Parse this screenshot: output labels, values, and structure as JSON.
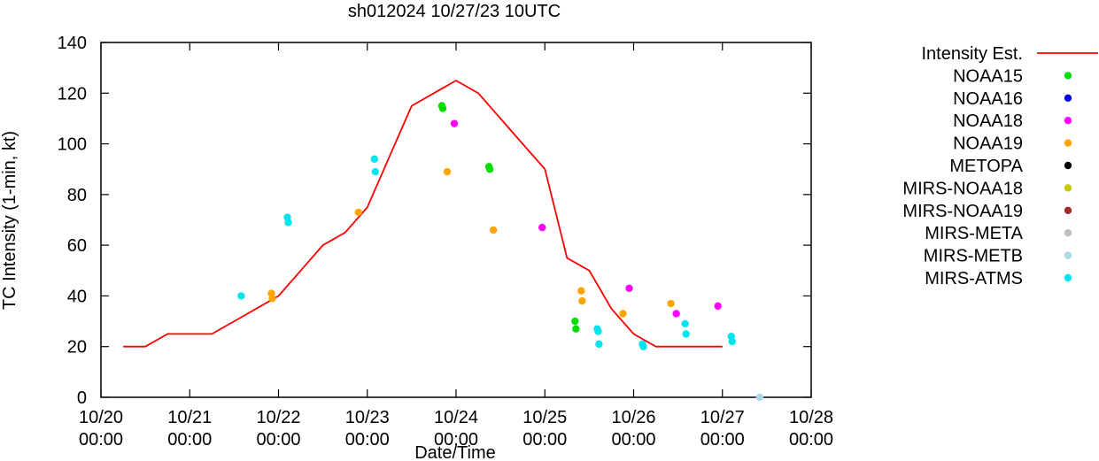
{
  "chart_data": {
    "type": "scatter",
    "title": "sh012024 10/27/23 10UTC",
    "xlabel": "Date/Time",
    "ylabel": "TC Intensity (1-min, kt)",
    "ylim": [
      0,
      140
    ],
    "yticks": [
      0,
      20,
      40,
      60,
      80,
      100,
      120,
      140
    ],
    "xlim": [
      0,
      8
    ],
    "xticks": [
      {
        "value": 0,
        "date": "10/20",
        "time": "00:00"
      },
      {
        "value": 1,
        "date": "10/21",
        "time": "00:00"
      },
      {
        "value": 2,
        "date": "10/22",
        "time": "00:00"
      },
      {
        "value": 3,
        "date": "10/23",
        "time": "00:00"
      },
      {
        "value": 4,
        "date": "10/24",
        "time": "00:00"
      },
      {
        "value": 5,
        "date": "10/25",
        "time": "00:00"
      },
      {
        "value": 6,
        "date": "10/26",
        "time": "00:00"
      },
      {
        "value": 7,
        "date": "10/27",
        "time": "00:00"
      },
      {
        "value": 8,
        "date": "10/28",
        "time": "00:00"
      }
    ],
    "x_units": "days since 10/20 00:00",
    "series": [
      {
        "name": "Intensity Est.",
        "kind": "line",
        "color": "#ff0000",
        "x": [
          0.25,
          0.5,
          0.75,
          1.0,
          1.25,
          1.5,
          1.75,
          2.0,
          2.25,
          2.5,
          2.75,
          3.0,
          3.25,
          3.5,
          3.75,
          4.0,
          4.25,
          4.5,
          4.75,
          5.0,
          5.25,
          5.5,
          5.75,
          6.0,
          6.25,
          6.5,
          6.75,
          7.0
        ],
        "y": [
          20,
          20,
          25,
          25,
          25,
          30,
          35,
          40,
          50,
          60,
          65,
          75,
          95,
          115,
          120,
          125,
          120,
          110,
          100,
          90,
          55,
          50,
          35,
          25,
          20,
          20,
          20,
          20
        ]
      },
      {
        "name": "NOAA15",
        "kind": "points",
        "color": "#00dd00",
        "x": [
          3.84,
          3.85,
          4.37,
          4.38,
          5.34,
          5.35
        ],
        "y": [
          115,
          114,
          91,
          90,
          30,
          27
        ]
      },
      {
        "name": "NOAA16",
        "kind": "points",
        "color": "#0000ee",
        "x": [],
        "y": []
      },
      {
        "name": "NOAA18",
        "kind": "points",
        "color": "#ff00ff",
        "x": [
          3.98,
          4.97,
          5.95,
          6.48,
          6.95
        ],
        "y": [
          108,
          67,
          43,
          33,
          36
        ]
      },
      {
        "name": "NOAA19",
        "kind": "points",
        "color": "#ffa500",
        "x": [
          1.92,
          1.93,
          2.9,
          3.9,
          4.42,
          5.41,
          5.42,
          5.88,
          6.42
        ],
        "y": [
          41,
          39,
          73,
          89,
          66,
          42,
          38,
          33,
          37
        ]
      },
      {
        "name": "METOPA",
        "kind": "points",
        "color": "#000000",
        "x": [],
        "y": []
      },
      {
        "name": "MIRS-NOAA18",
        "kind": "points",
        "color": "#c8c800",
        "x": [],
        "y": []
      },
      {
        "name": "MIRS-NOAA19",
        "kind": "points",
        "color": "#a52a2a",
        "x": [],
        "y": []
      },
      {
        "name": "MIRS-META",
        "kind": "points",
        "color": "#c0c0c0",
        "x": [],
        "y": []
      },
      {
        "name": "MIRS-METB",
        "kind": "points",
        "color": "#add8e6",
        "x": [
          7.42
        ],
        "y": [
          0
        ]
      },
      {
        "name": "MIRS-ATMS",
        "kind": "points",
        "color": "#00e5ee",
        "x": [
          1.58,
          2.1,
          2.11,
          3.08,
          3.09,
          5.59,
          5.6,
          5.61,
          6.1,
          6.11,
          6.58,
          6.59,
          7.1,
          7.11
        ],
        "y": [
          40,
          71,
          69,
          94,
          89,
          27,
          26,
          21,
          21,
          20,
          29,
          25,
          24,
          22
        ]
      }
    ]
  }
}
